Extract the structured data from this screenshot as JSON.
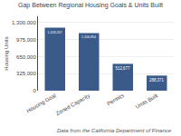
{
  "chart_data": {
    "type": "bar",
    "title": "Gap Between Regional Housing Goals & Units Built",
    "categories": [
      "Housing Goal",
      "Zoned Capacity",
      "Permits",
      "Units Built"
    ],
    "values": [
      1203207,
      1100954,
      512677,
      288371
    ],
    "value_labels": [
      "1,203,207",
      "1,100,954",
      "512,677",
      "288,371"
    ],
    "data_labels": true,
    "color": "#3a5a8a",
    "ylabel": "Housing Units",
    "ylim": [
      0,
      1420000
    ],
    "yticks": [
      0,
      {
        "value": 325000,
        "label": "325,000"
      },
      {
        "value": 650000,
        "label": "650,000"
      },
      {
        "value": 975000,
        "label": "975,000"
      },
      {
        "value": 1300000,
        "label": "1,300,000"
      }
    ],
    "grid": true,
    "annotations": [
      "Data from the California Department of Finance"
    ]
  }
}
